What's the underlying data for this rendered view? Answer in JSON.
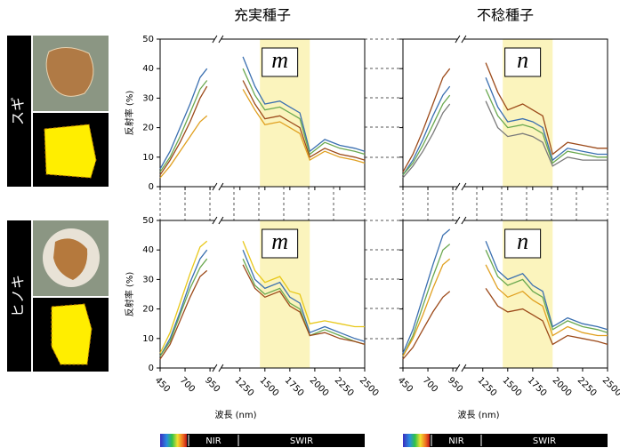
{
  "header": {
    "columns": [
      "充実種子",
      "不稔種子"
    ],
    "rows": [
      "スギ",
      "ヒノキ"
    ]
  },
  "chart_data": [
    {
      "type": "line",
      "panel_label": "m",
      "ylabel": "反射率 (%)",
      "x": [
        450,
        550,
        650,
        750,
        850,
        920,
        1100,
        1280,
        1400,
        1500,
        1650,
        1750,
        1850,
        1950,
        2100,
        2250,
        2400,
        2500
      ],
      "xlim": [
        450,
        2500
      ],
      "xticks": [
        450,
        700,
        950,
        1250,
        1500,
        1750,
        2000,
        2250,
        2500
      ],
      "xbreak": [
        950,
        1250
      ],
      "ylim": [
        0,
        50
      ],
      "yticks": [
        0,
        10,
        20,
        30,
        40,
        50
      ],
      "highlight": [
        1450,
        1950
      ],
      "show_xtick_labels": false,
      "show_ytick_labels": true,
      "series": [
        {
          "color": "#3a6fb0",
          "values": [
            6,
            12,
            20,
            28,
            37,
            40,
            null,
            44,
            34,
            28,
            29,
            27,
            25,
            12,
            16,
            14,
            13,
            12
          ]
        },
        {
          "color": "#6aa84f",
          "values": [
            5,
            10,
            17,
            25,
            33,
            36,
            null,
            40,
            31,
            26,
            27,
            25,
            23,
            11,
            15,
            13,
            12,
            11
          ]
        },
        {
          "color": "#9c4a1a",
          "values": [
            4,
            9,
            15,
            22,
            30,
            34,
            null,
            36,
            28,
            23,
            24,
            22,
            20,
            10,
            13,
            11,
            10,
            9
          ]
        },
        {
          "color": "#e0a020",
          "values": [
            3,
            7,
            12,
            17,
            22,
            24,
            null,
            33,
            26,
            21,
            22,
            20,
            18,
            9,
            12,
            10,
            9,
            8
          ]
        }
      ]
    },
    {
      "type": "line",
      "panel_label": "n",
      "x": [
        450,
        550,
        650,
        750,
        850,
        920,
        1100,
        1280,
        1400,
        1500,
        1650,
        1750,
        1850,
        1950,
        2100,
        2250,
        2400,
        2500
      ],
      "xlim": [
        450,
        2500
      ],
      "xticks": [
        450,
        700,
        950,
        1250,
        1500,
        1750,
        2000,
        2250,
        2500
      ],
      "xbreak": [
        950,
        1250
      ],
      "ylim": [
        0,
        50
      ],
      "yticks": [
        0,
        10,
        20,
        30,
        40,
        50
      ],
      "highlight": [
        1450,
        1950
      ],
      "show_xtick_labels": false,
      "show_ytick_labels": false,
      "series": [
        {
          "color": "#9c4a1a",
          "values": [
            5,
            11,
            19,
            28,
            37,
            40,
            null,
            42,
            32,
            26,
            28,
            26,
            24,
            11,
            15,
            14,
            13,
            13
          ]
        },
        {
          "color": "#3a6fb0",
          "values": [
            4,
            9,
            16,
            24,
            31,
            34,
            null,
            37,
            27,
            22,
            23,
            22,
            20,
            9,
            13,
            12,
            11,
            11
          ]
        },
        {
          "color": "#6aa84f",
          "values": [
            4,
            8,
            14,
            21,
            28,
            31,
            null,
            33,
            24,
            20,
            21,
            20,
            18,
            8,
            12,
            11,
            10,
            10
          ]
        },
        {
          "color": "#7a7a7a",
          "values": [
            3,
            7,
            12,
            18,
            25,
            28,
            null,
            29,
            20,
            17,
            18,
            17,
            15,
            7,
            10,
            9,
            9,
            9
          ]
        }
      ]
    },
    {
      "type": "line",
      "panel_label": "m",
      "ylabel": "反射率 (%)",
      "xlabel": "波長 (nm)",
      "band_labels": [
        "NIR",
        "SWIR"
      ],
      "x": [
        450,
        550,
        650,
        750,
        850,
        920,
        1100,
        1280,
        1400,
        1500,
        1650,
        1750,
        1850,
        1950,
        2100,
        2250,
        2400,
        2500
      ],
      "xlim": [
        450,
        2500
      ],
      "xticks": [
        450,
        700,
        950,
        1250,
        1500,
        1750,
        2000,
        2250,
        2500
      ],
      "xbreak": [
        950,
        1250
      ],
      "ylim": [
        0,
        50
      ],
      "yticks": [
        0,
        10,
        20,
        30,
        40,
        50
      ],
      "highlight": [
        1450,
        1950
      ],
      "show_xtick_labels": true,
      "show_ytick_labels": true,
      "series": [
        {
          "color": "#e8c81a",
          "values": [
            5,
            12,
            22,
            32,
            41,
            43,
            null,
            43,
            33,
            29,
            31,
            26,
            25,
            15,
            16,
            15,
            14,
            14
          ]
        },
        {
          "color": "#3a6fb0",
          "values": [
            4,
            10,
            19,
            29,
            37,
            40,
            null,
            40,
            30,
            27,
            29,
            24,
            22,
            12,
            14,
            12,
            10,
            9
          ]
        },
        {
          "color": "#6aa84f",
          "values": [
            4,
            9,
            18,
            27,
            34,
            37,
            null,
            37,
            28,
            25,
            27,
            22,
            20,
            11,
            13,
            11,
            9,
            8
          ]
        },
        {
          "color": "#9c4a1a",
          "values": [
            3,
            8,
            16,
            24,
            31,
            33,
            null,
            35,
            27,
            24,
            26,
            21,
            19,
            11,
            12,
            10,
            9,
            8
          ]
        }
      ]
    },
    {
      "type": "line",
      "panel_label": "n",
      "xlabel": "波長 (nm)",
      "band_labels": [
        "NIR",
        "SWIR"
      ],
      "x": [
        450,
        550,
        650,
        750,
        850,
        920,
        1100,
        1280,
        1400,
        1500,
        1650,
        1750,
        1850,
        1950,
        2100,
        2250,
        2400,
        2500
      ],
      "xlim": [
        450,
        2500
      ],
      "xticks": [
        450,
        700,
        950,
        1250,
        1500,
        1750,
        2000,
        2250,
        2500
      ],
      "xbreak": [
        950,
        1250
      ],
      "ylim": [
        0,
        50
      ],
      "yticks": [
        0,
        10,
        20,
        30,
        40,
        50
      ],
      "highlight": [
        1450,
        1950
      ],
      "show_xtick_labels": true,
      "show_ytick_labels": false,
      "series": [
        {
          "color": "#3a6fb0",
          "values": [
            5,
            13,
            24,
            35,
            45,
            47,
            null,
            43,
            33,
            30,
            32,
            28,
            26,
            14,
            17,
            15,
            14,
            13
          ]
        },
        {
          "color": "#6aa84f",
          "values": [
            4,
            11,
            21,
            31,
            40,
            42,
            null,
            40,
            31,
            28,
            30,
            26,
            24,
            13,
            16,
            14,
            13,
            12
          ]
        },
        {
          "color": "#e0a020",
          "values": [
            4,
            10,
            18,
            27,
            35,
            37,
            null,
            35,
            27,
            24,
            26,
            23,
            21,
            11,
            14,
            12,
            11,
            11
          ]
        },
        {
          "color": "#9c4a1a",
          "values": [
            3,
            7,
            13,
            19,
            24,
            26,
            null,
            27,
            21,
            19,
            20,
            18,
            16,
            8,
            11,
            10,
            9,
            8
          ]
        }
      ]
    }
  ]
}
